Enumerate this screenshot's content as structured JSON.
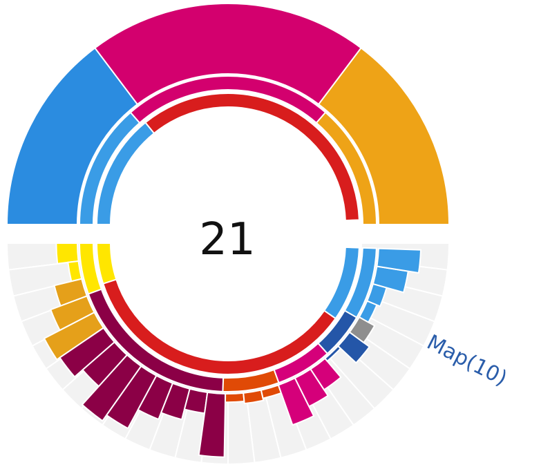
{
  "center_value": "21",
  "hover_label": "Map(10)",
  "colors": {
    "blue": "#2b8ce0",
    "magenta": "#d3006e",
    "orange": "#eea317",
    "red": "#d81d1d",
    "light_blue": "#3a9ce6",
    "yellow": "#ffe600",
    "dark_orange": "#e5a01a",
    "plum": "#8b0046",
    "burnt_orange": "#e04a06",
    "pink": "#d5007a",
    "navy": "#2456a8",
    "grey": "#8e8e8e",
    "track": "#f2f2f2"
  },
  "chart_data": {
    "type": "sunburst",
    "top_ring_segments": [
      {
        "ring": "outer",
        "color": "blue"
      },
      {
        "ring": "outer",
        "color": "magenta"
      },
      {
        "ring": "outer",
        "color": "orange"
      },
      {
        "ring": "middle",
        "color": "light_blue"
      },
      {
        "ring": "middle",
        "color": "magenta"
      },
      {
        "ring": "middle",
        "color": "orange"
      },
      {
        "ring": "inner",
        "color": "light_blue"
      },
      {
        "ring": "inner",
        "color": "red"
      }
    ],
    "bottom_inner_ring": [
      {
        "color": "yellow"
      },
      {
        "color": "red"
      },
      {
        "color": "light_blue"
      }
    ],
    "bottom_middle_ring": [
      {
        "color": "yellow"
      },
      {
        "color": "plum"
      },
      {
        "color": "burnt_orange"
      },
      {
        "color": "pink"
      },
      {
        "color": "navy"
      },
      {
        "color": "light_blue"
      }
    ],
    "bottom_bars_relative_length": [
      {
        "group": "yellow",
        "value": 0.3
      },
      {
        "group": "yellow",
        "value": 0.15
      },
      {
        "group": "dark_orange",
        "value": 0.4
      },
      {
        "group": "dark_orange",
        "value": 0.55
      },
      {
        "group": "dark_orange",
        "value": 0.8
      },
      {
        "group": "plum",
        "value": 0.75
      },
      {
        "group": "plum",
        "value": 0.6
      },
      {
        "group": "plum",
        "value": 0.95
      },
      {
        "group": "plum",
        "value": 0.85
      },
      {
        "group": "plum",
        "value": 0.55
      },
      {
        "group": "plum",
        "value": 0.45
      },
      {
        "group": "plum",
        "value": 0.3
      },
      {
        "group": "plum",
        "value": 0.9
      },
      {
        "group": "burnt_orange",
        "value": 0.12
      },
      {
        "group": "burnt_orange",
        "value": 0.15
      },
      {
        "group": "burnt_orange",
        "value": 0.12
      },
      {
        "group": "pink",
        "value": 0.6
      },
      {
        "group": "pink",
        "value": 0.45
      },
      {
        "group": "pink",
        "value": 0.35
      },
      {
        "group": "navy",
        "value": 0.05
      },
      {
        "group": "navy",
        "value": 0.35
      },
      {
        "group": "grey",
        "value": 0.25
      },
      {
        "group": "light_blue",
        "value": 0.15
      },
      {
        "group": "light_blue",
        "value": 0.2
      },
      {
        "group": "light_blue",
        "value": 0.45
      },
      {
        "group": "light_blue",
        "value": 0.6
      }
    ]
  }
}
